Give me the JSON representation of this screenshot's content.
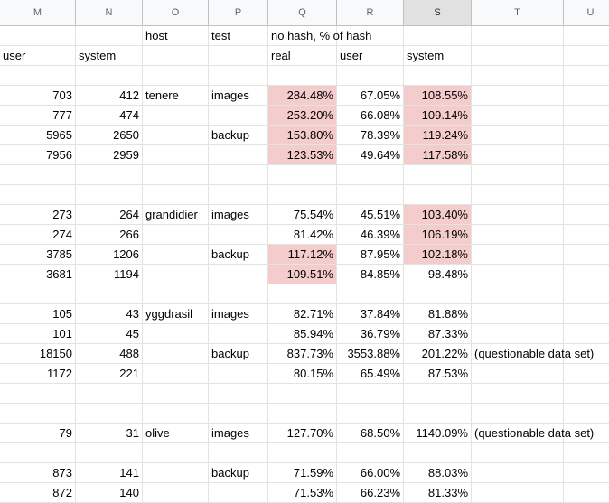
{
  "columns": [
    {
      "key": "M",
      "label": "M",
      "selected": false
    },
    {
      "key": "N",
      "label": "N",
      "selected": false
    },
    {
      "key": "O",
      "label": "O",
      "selected": false
    },
    {
      "key": "P",
      "label": "P",
      "selected": false
    },
    {
      "key": "Q",
      "label": "Q",
      "selected": false
    },
    {
      "key": "R",
      "label": "R",
      "selected": false
    },
    {
      "key": "S",
      "label": "S",
      "selected": true
    },
    {
      "key": "T",
      "label": "T",
      "selected": false
    },
    {
      "key": "U",
      "label": "U",
      "selected": false
    }
  ],
  "highlight_color": "#f4cccc",
  "rows": [
    {
      "O": "host",
      "P": "test",
      "Q": "no hash, % of hash"
    },
    {
      "M": "user",
      "N": "system",
      "Q": "real",
      "R": "user",
      "S": "system",
      "_text": true
    },
    {},
    {
      "M": "703",
      "N": "412",
      "O": "tenere",
      "P": "images",
      "Q": "284.48%",
      "R": "67.05%",
      "S": "108.55%",
      "hl": [
        "Q",
        "S"
      ]
    },
    {
      "M": "777",
      "N": "474",
      "Q": "253.20%",
      "R": "66.08%",
      "S": "109.14%",
      "hl": [
        "Q",
        "S"
      ]
    },
    {
      "M": "5965",
      "N": "2650",
      "P": "backup",
      "Q": "153.80%",
      "R": "78.39%",
      "S": "119.24%",
      "hl": [
        "Q",
        "S"
      ]
    },
    {
      "M": "7956",
      "N": "2959",
      "Q": "123.53%",
      "R": "49.64%",
      "S": "117.58%",
      "hl": [
        "Q",
        "S"
      ]
    },
    {},
    {},
    {
      "M": "273",
      "N": "264",
      "O": "grandidier",
      "P": "images",
      "Q": "75.54%",
      "R": "45.51%",
      "S": "103.40%",
      "hl": [
        "S"
      ]
    },
    {
      "M": "274",
      "N": "266",
      "Q": "81.42%",
      "R": "46.39%",
      "S": "106.19%",
      "hl": [
        "S"
      ]
    },
    {
      "M": "3785",
      "N": "1206",
      "P": "backup",
      "Q": "117.12%",
      "R": "87.95%",
      "S": "102.18%",
      "hl": [
        "Q",
        "S"
      ]
    },
    {
      "M": "3681",
      "N": "1194",
      "Q": "109.51%",
      "R": "84.85%",
      "S": "98.48%",
      "hl": [
        "Q"
      ]
    },
    {},
    {
      "M": "105",
      "N": "43",
      "O": "yggdrasil",
      "P": "images",
      "Q": "82.71%",
      "R": "37.84%",
      "S": "81.88%"
    },
    {
      "M": "101",
      "N": "45",
      "Q": "85.94%",
      "R": "36.79%",
      "S": "87.33%"
    },
    {
      "M": "18150",
      "N": "488",
      "P": "backup",
      "Q": "837.73%",
      "R": "3553.88%",
      "S": "201.22%",
      "T": "(questionable data set)"
    },
    {
      "M": "1172",
      "N": "221",
      "Q": "80.15%",
      "R": "65.49%",
      "S": "87.53%"
    },
    {},
    {},
    {
      "M": "79",
      "N": "31",
      "O": "olive",
      "P": "images",
      "Q": "127.70%",
      "R": "68.50%",
      "S": "1140.09%",
      "T": "(questionable data set)"
    },
    {},
    {
      "M": "873",
      "N": "141",
      "P": "backup",
      "Q": "71.59%",
      "R": "66.00%",
      "S": "88.03%"
    },
    {
      "M": "872",
      "N": "140",
      "Q": "71.53%",
      "R": "66.23%",
      "S": "81.33%"
    }
  ]
}
